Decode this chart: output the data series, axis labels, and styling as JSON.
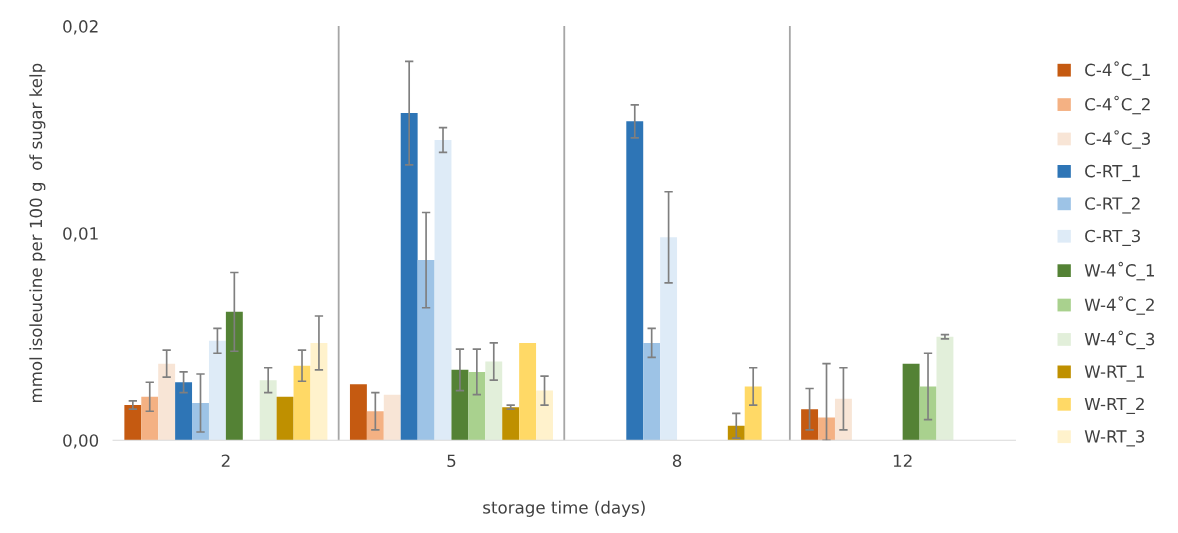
{
  "chart_data": {
    "type": "bar",
    "xlabel": "storage time (days)",
    "ylabel": "mmol isoleucine per 100 g  of sugar kelp",
    "categories": [
      "2",
      "5",
      "8",
      "12"
    ],
    "ylim": [
      0,
      0.02
    ],
    "yticks": [
      {
        "value": 0,
        "label": "0,00"
      },
      {
        "value": 0.01,
        "label": "0,01"
      },
      {
        "value": 0.02,
        "label": "0,02"
      }
    ],
    "grid": "x",
    "legend": "right",
    "series": [
      {
        "name": "C-4˚C_1",
        "color": "#c55a11",
        "values": [
          0.0017,
          0.0027,
          null,
          0.0015
        ],
        "errors": [
          0.0002,
          null,
          null,
          0.001
        ]
      },
      {
        "name": "C-4˚C_2",
        "color": "#f4b183",
        "values": [
          0.0021,
          0.0014,
          null,
          0.0011
        ],
        "errors": [
          0.0007,
          0.0009,
          null,
          [
            0,
            0.0037
          ]
        ]
      },
      {
        "name": "C-4˚C_3",
        "color": "#f8e5d6",
        "values": [
          0.0037,
          0.0022,
          null,
          0.002
        ],
        "errors": [
          0.00065,
          null,
          null,
          0.0015
        ]
      },
      {
        "name": "C-RT_1",
        "color": "#2e75b6",
        "values": [
          0.0028,
          0.0158,
          0.0154,
          null
        ],
        "errors": [
          0.0005,
          0.0025,
          0.0008,
          null
        ]
      },
      {
        "name": "C-RT_2",
        "color": "#9dc3e6",
        "values": [
          0.0018,
          0.0087,
          0.0047,
          null
        ],
        "errors": [
          0.0014,
          0.0023,
          0.0007,
          null
        ]
      },
      {
        "name": "C-RT_3",
        "color": "#deebf7",
        "values": [
          0.0048,
          0.0145,
          0.0098,
          null
        ],
        "errors": [
          0.0006,
          0.0006,
          0.0022,
          null
        ]
      },
      {
        "name": "W-4˚C_1",
        "color": "#548235",
        "values": [
          0.0062,
          0.0034,
          null,
          0.0037
        ],
        "errors": [
          0.0019,
          0.001,
          null,
          null
        ]
      },
      {
        "name": "W-4˚C_2",
        "color": "#a9d18e",
        "values": [
          null,
          0.0033,
          null,
          0.0026
        ],
        "errors": [
          null,
          0.0011,
          null,
          0.0016
        ]
      },
      {
        "name": "W-4˚C_3",
        "color": "#e2efda",
        "values": [
          0.0029,
          0.0038,
          null,
          0.005
        ],
        "errors": [
          0.0006,
          0.0009,
          null,
          0.0001
        ]
      },
      {
        "name": "W-RT_1",
        "color": "#bf9000",
        "values": [
          0.0021,
          0.0016,
          0.0007,
          null
        ],
        "errors": [
          null,
          0.0001,
          0.0006,
          null
        ]
      },
      {
        "name": "W-RT_2",
        "color": "#ffd966",
        "values": [
          0.0036,
          0.0047,
          0.0026,
          null
        ],
        "errors": [
          0.00075,
          null,
          0.0009,
          null
        ]
      },
      {
        "name": "W-RT_3",
        "color": "#fff2cc",
        "values": [
          0.0047,
          0.0024,
          null,
          null
        ],
        "errors": [
          0.0013,
          0.0007,
          null,
          null
        ]
      }
    ]
  }
}
